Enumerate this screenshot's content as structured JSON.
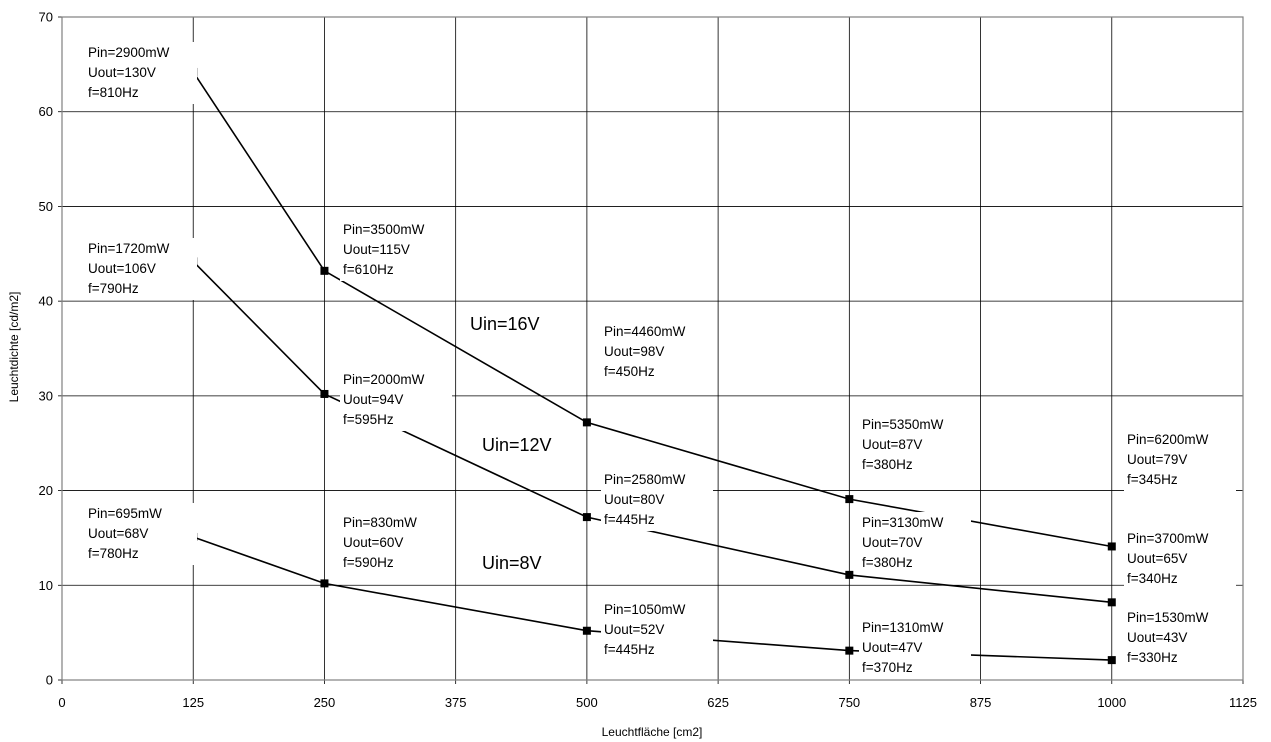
{
  "chart_data": {
    "type": "line",
    "title": "",
    "xlabel": "Leuchtfläche [cm2]",
    "ylabel": "Leuchtdichte [cd/m2]",
    "xlim": [
      0,
      1125
    ],
    "ylim": [
      0,
      70
    ],
    "xticks": [
      "0",
      "125",
      "250",
      "375",
      "500",
      "625",
      "750",
      "875",
      "1000",
      "1125"
    ],
    "yticks": [
      "0",
      "10",
      "20",
      "30",
      "40",
      "50",
      "60",
      "70"
    ],
    "grid": true,
    "line_color": "#000000",
    "series": [
      {
        "name": "Uin=16V",
        "points": [
          {
            "x": 125,
            "y": 64.2,
            "label": [
              "Pin=2900mW",
              "Uout=130V",
              "f=810Hz"
            ]
          },
          {
            "x": 250,
            "y": 43.2,
            "label": [
              "Pin=3500mW",
              "Uout=115V",
              "f=610Hz"
            ]
          },
          {
            "x": 500,
            "y": 27.2,
            "label": [
              "Pin=4460mW",
              "Uout=98V",
              "f=450Hz"
            ]
          },
          {
            "x": 750,
            "y": 19.1,
            "label": [
              "Pin=5350mW",
              "Uout=87V",
              "f=380Hz"
            ]
          },
          {
            "x": 1000,
            "y": 14.1,
            "label": [
              "Pin=6200mW",
              "Uout=79V",
              "f=345Hz"
            ]
          }
        ]
      },
      {
        "name": "Uin=12V",
        "points": [
          {
            "x": 125,
            "y": 44.2,
            "label": [
              "Pin=1720mW",
              "Uout=106V",
              "f=790Hz"
            ]
          },
          {
            "x": 250,
            "y": 30.2,
            "label": [
              "Pin=2000mW",
              "Uout=94V",
              "f=595Hz"
            ]
          },
          {
            "x": 500,
            "y": 17.2,
            "label": [
              "Pin=2580mW",
              "Uout=80V",
              "f=445Hz"
            ]
          },
          {
            "x": 750,
            "y": 11.1,
            "label": [
              "Pin=3130mW",
              "Uout=70V",
              "f=380Hz"
            ]
          },
          {
            "x": 1000,
            "y": 8.2,
            "label": [
              "Pin=3700mW",
              "Uout=65V",
              "f=340Hz"
            ]
          }
        ]
      },
      {
        "name": "Uin=8V",
        "points": [
          {
            "x": 125,
            "y": 15.1,
            "label": [
              "Pin=695mW",
              "Uout=68V",
              "f=780Hz"
            ]
          },
          {
            "x": 250,
            "y": 10.2,
            "label": [
              "Pin=830mW",
              "Uout=60V",
              "f=590Hz"
            ]
          },
          {
            "x": 500,
            "y": 5.2,
            "label": [
              "Pin=1050mW",
              "Uout=52V",
              "f=445Hz"
            ]
          },
          {
            "x": 750,
            "y": 3.1,
            "label": [
              "Pin=1310mW",
              "Uout=47V",
              "f=370Hz"
            ]
          },
          {
            "x": 1000,
            "y": 2.1,
            "label": [
              "Pin=1530mW",
              "Uout=43V",
              "f=330Hz"
            ]
          }
        ]
      }
    ]
  }
}
